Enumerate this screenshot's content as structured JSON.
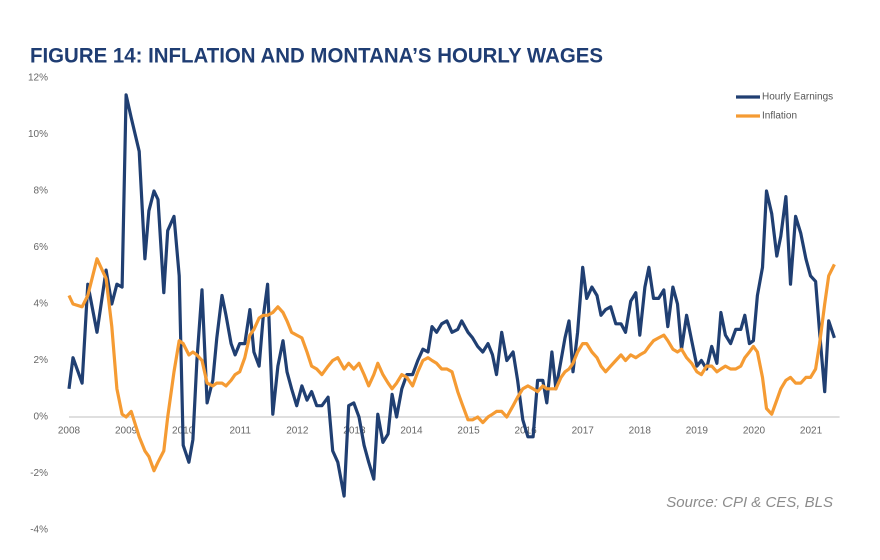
{
  "chart_data": {
    "type": "line",
    "title": "FIGURE 14: INFLATION AND MONTANA’S HOURLY WAGES",
    "source": "Source: CPI & CES, BLS",
    "x": [
      2008.0,
      2008.07,
      2008.23,
      2008.33,
      2008.49,
      2008.65,
      2008.75,
      2008.84,
      2008.93,
      2009.0,
      2009.09,
      2009.23,
      2009.33,
      2009.4,
      2009.49,
      2009.56,
      2009.66,
      2009.73,
      2009.84,
      2009.93,
      2010.0,
      2010.1,
      2010.17,
      2010.24,
      2010.33,
      2010.42,
      2010.52,
      2010.59,
      2010.68,
      2010.75,
      2010.84,
      2010.91,
      2010.99,
      2011.08,
      2011.17,
      2011.24,
      2011.33,
      2011.4,
      2011.48,
      2011.57,
      2011.66,
      2011.75,
      2011.82,
      2011.9,
      2011.99,
      2012.08,
      2012.17,
      2012.25,
      2012.34,
      2012.43,
      2012.54,
      2012.62,
      2012.71,
      2012.82,
      2012.9,
      2012.99,
      2013.08,
      2013.17,
      2013.25,
      2013.34,
      2013.41,
      2013.5,
      2013.59,
      2013.66,
      2013.74,
      2013.83,
      2013.92,
      2014.02,
      2014.11,
      2014.2,
      2014.29,
      2014.36,
      2014.44,
      2014.53,
      2014.62,
      2014.71,
      2014.81,
      2014.88,
      2014.99,
      2015.07,
      2015.16,
      2015.25,
      2015.34,
      2015.42,
      2015.49,
      2015.58,
      2015.67,
      2015.78,
      2015.86,
      2015.95,
      2016.04,
      2016.13,
      2016.21,
      2016.3,
      2016.37,
      2016.46,
      2016.53,
      2016.62,
      2016.69,
      2016.76,
      2016.83,
      2016.91,
      2017.0,
      2017.07,
      2017.16,
      2017.25,
      2017.32,
      2017.4,
      2017.49,
      2017.58,
      2017.67,
      2017.75,
      2017.84,
      2017.93,
      2018.0,
      2018.09,
      2018.16,
      2018.24,
      2018.33,
      2018.42,
      2018.49,
      2018.58,
      2018.66,
      2018.73,
      2018.82,
      2018.91,
      2019.0,
      2019.08,
      2019.17,
      2019.26,
      2019.35,
      2019.42,
      2019.5,
      2019.59,
      2019.68,
      2019.77,
      2019.84,
      2019.92,
      2019.99,
      2020.06,
      2020.15,
      2020.22,
      2020.31,
      2020.4,
      2020.47,
      2020.56,
      2020.64,
      2020.73,
      2020.82,
      2020.91,
      2020.99,
      2021.08,
      2021.15,
      2021.24,
      2021.31,
      2021.41
    ],
    "series": [
      {
        "name": "Hourly Earnings",
        "color": "#203f72",
        "values": [
          1.0,
          2.1,
          1.2,
          4.7,
          3.0,
          5.2,
          4.0,
          4.7,
          4.6,
          11.4,
          10.6,
          9.4,
          5.6,
          7.3,
          8.0,
          7.7,
          4.4,
          6.6,
          7.1,
          5.0,
          -1.0,
          -1.6,
          -0.8,
          2.0,
          4.5,
          0.5,
          1.3,
          2.8,
          4.3,
          3.6,
          2.6,
          2.2,
          2.6,
          2.6,
          3.8,
          2.3,
          1.8,
          3.5,
          4.7,
          0.1,
          1.8,
          2.7,
          1.6,
          1.0,
          0.4,
          1.1,
          0.6,
          0.9,
          0.4,
          0.4,
          0.7,
          -1.2,
          -1.6,
          -2.8,
          0.4,
          0.5,
          0.0,
          -1.0,
          -1.6,
          -2.2,
          0.1,
          -0.9,
          -0.6,
          0.8,
          0.0,
          1.0,
          1.5,
          1.5,
          2.0,
          2.4,
          2.3,
          3.2,
          3.0,
          3.3,
          3.4,
          3.0,
          3.1,
          3.4,
          3.0,
          2.8,
          2.5,
          2.3,
          2.6,
          2.2,
          1.5,
          3.0,
          2.0,
          2.3,
          1.3,
          -0.1,
          -0.7,
          -0.7,
          1.3,
          1.3,
          0.5,
          2.3,
          1.0,
          2.0,
          2.8,
          3.4,
          1.6,
          3.0,
          5.3,
          4.2,
          4.6,
          4.3,
          3.6,
          3.8,
          3.9,
          3.3,
          3.3,
          3.0,
          4.1,
          4.4,
          2.9,
          4.6,
          5.3,
          4.2,
          4.2,
          4.5,
          3.2,
          4.6,
          4.0,
          2.4,
          3.6,
          2.7,
          1.8,
          2.0,
          1.7,
          2.5,
          1.9,
          3.7,
          2.9,
          2.6,
          3.1,
          3.1,
          3.6,
          2.6,
          2.7,
          4.3,
          5.3,
          8.0,
          7.2,
          5.7,
          6.4,
          7.8,
          4.7,
          7.1,
          6.5,
          5.6,
          5.0,
          4.8,
          3.0,
          0.9,
          3.4,
          2.8
        ]
      },
      {
        "name": "Inflation",
        "color": "#f59b33",
        "values": [
          4.3,
          4.0,
          3.9,
          4.3,
          5.6,
          4.9,
          3.2,
          1.0,
          0.1,
          0.0,
          0.2,
          -0.7,
          -1.2,
          -1.4,
          -1.9,
          -1.6,
          -1.2,
          0.0,
          1.6,
          2.7,
          2.6,
          2.2,
          2.3,
          2.2,
          2.0,
          1.2,
          1.1,
          1.2,
          1.2,
          1.1,
          1.3,
          1.5,
          1.6,
          2.1,
          2.9,
          3.1,
          3.5,
          3.6,
          3.6,
          3.7,
          3.9,
          3.7,
          3.4,
          3.0,
          2.9,
          2.8,
          2.3,
          1.8,
          1.7,
          1.5,
          1.8,
          2.0,
          2.1,
          1.7,
          1.9,
          1.7,
          1.9,
          1.5,
          1.1,
          1.5,
          1.9,
          1.5,
          1.2,
          1.0,
          1.2,
          1.5,
          1.4,
          1.1,
          1.6,
          2.0,
          2.1,
          2.0,
          1.9,
          1.7,
          1.7,
          1.6,
          0.9,
          0.5,
          -0.1,
          -0.1,
          0.0,
          -0.2,
          0.0,
          0.1,
          0.2,
          0.2,
          0.0,
          0.4,
          0.7,
          1.0,
          1.1,
          1.0,
          0.9,
          1.1,
          1.0,
          1.0,
          1.0,
          1.4,
          1.6,
          1.7,
          1.9,
          2.3,
          2.6,
          2.6,
          2.3,
          2.1,
          1.8,
          1.6,
          1.8,
          2.0,
          2.2,
          2.0,
          2.2,
          2.1,
          2.2,
          2.3,
          2.5,
          2.7,
          2.8,
          2.9,
          2.7,
          2.4,
          2.3,
          2.4,
          2.1,
          1.9,
          1.6,
          1.5,
          1.8,
          1.8,
          1.6,
          1.7,
          1.8,
          1.7,
          1.7,
          1.8,
          2.1,
          2.3,
          2.5,
          2.3,
          1.4,
          0.3,
          0.1,
          0.6,
          1.0,
          1.3,
          1.4,
          1.2,
          1.2,
          1.4,
          1.4,
          1.7,
          2.6,
          4.0,
          5.0,
          5.4
        ]
      }
    ],
    "xlim": [
      2008,
      2021.5
    ],
    "xticks": [
      2008,
      2009,
      2010,
      2011,
      2012,
      2013,
      2014,
      2015,
      2016,
      2017,
      2018,
      2019,
      2020,
      2021
    ],
    "ylim": [
      -4,
      12
    ],
    "yticks": [
      {
        "value": -4,
        "label": "-4%"
      },
      {
        "value": -2,
        "label": "-2%"
      },
      {
        "value": 0,
        "label": "0%"
      },
      {
        "value": 2,
        "label": "2%"
      },
      {
        "value": 4,
        "label": "4%"
      },
      {
        "value": 6,
        "label": "6%"
      },
      {
        "value": 8,
        "label": "8%"
      },
      {
        "value": 10,
        "label": "10%"
      },
      {
        "value": 12,
        "label": "12%"
      }
    ],
    "grid": false,
    "legend": "upper right"
  }
}
